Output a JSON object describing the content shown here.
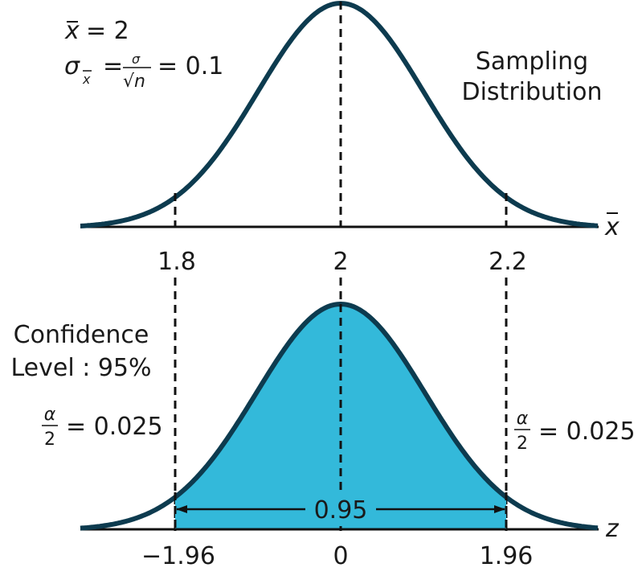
{
  "colors": {
    "curve": "#0d3b4f",
    "shade": "#33b9da",
    "axis": "#111111",
    "text": "#1a1a1a"
  },
  "top": {
    "mean_line": {
      "sym": "x",
      "eq": "= 2"
    },
    "sigma_line": {
      "sym": "σ",
      "sub": "x",
      "eq": "=",
      "num": "σ",
      "den_radical": "√",
      "den_var": "n",
      "result": "= 0.1"
    },
    "title_line1": "Sampling",
    "title_line2": "Distribution",
    "axis_label": "x",
    "ticks": [
      "1.8",
      "2",
      "2.2"
    ]
  },
  "bottom": {
    "confidence_line1": "Confidence",
    "confidence_line2": "Level : 95%",
    "alpha_num": "α",
    "alpha_den": "2",
    "alpha_value": "= 0.025",
    "area_label": "0.95",
    "axis_label": "z",
    "ticks": [
      "−1.96",
      "0",
      "1.96"
    ]
  }
}
